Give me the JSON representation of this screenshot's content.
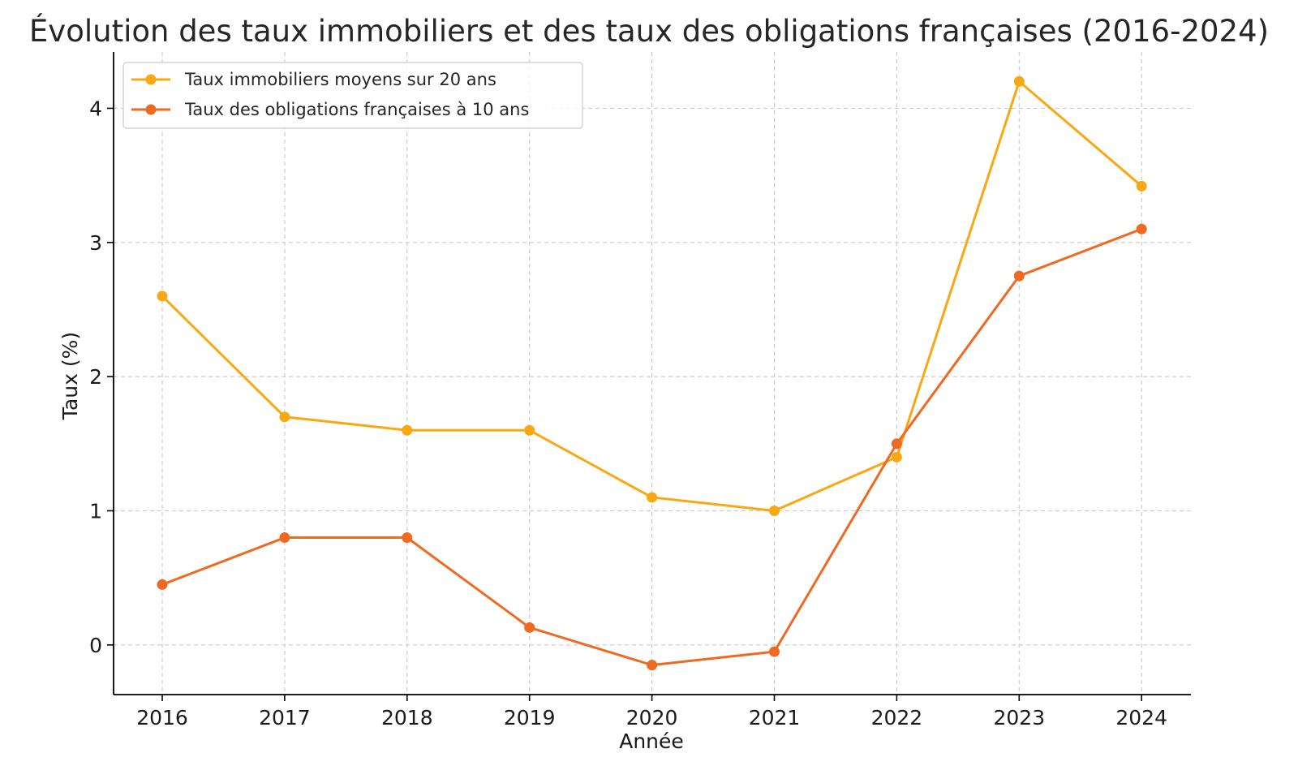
{
  "chart_data": {
    "type": "line",
    "title": "Évolution des taux immobiliers et des taux des obligations françaises (2016-2024)",
    "xlabel": "Année",
    "ylabel": "Taux (%)",
    "categories": [
      "2016",
      "2017",
      "2018",
      "2019",
      "2020",
      "2021",
      "2022",
      "2023",
      "2024"
    ],
    "yticks": [
      0,
      1,
      2,
      3,
      4
    ],
    "ylim": [
      -0.37,
      4.42
    ],
    "grid": true,
    "legend_position": "top-left",
    "series": [
      {
        "name": "Taux immobiliers moyens sur 20 ans",
        "color": "#F9A813",
        "values": [
          2.6,
          1.7,
          1.6,
          1.6,
          1.1,
          1.0,
          1.4,
          4.2,
          3.42
        ]
      },
      {
        "name": "Taux des obligations françaises à 10 ans",
        "color": "#EE6A22",
        "values": [
          0.45,
          0.8,
          0.8,
          0.13,
          -0.15,
          -0.05,
          1.5,
          2.75,
          3.1
        ]
      }
    ]
  }
}
